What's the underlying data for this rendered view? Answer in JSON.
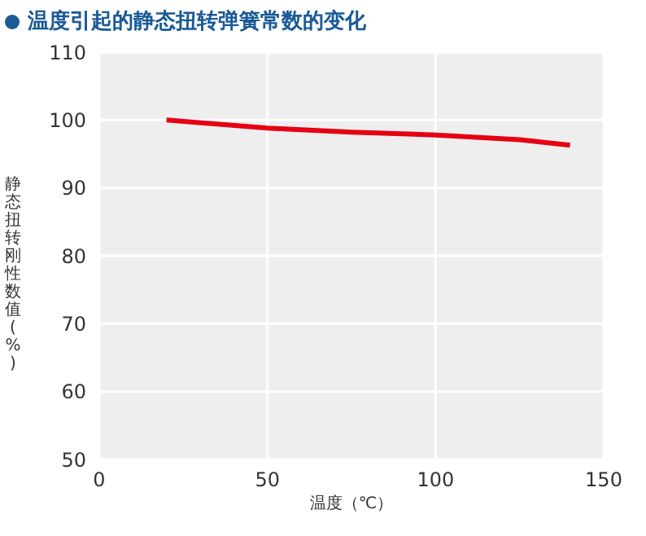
{
  "chart_data": {
    "type": "line",
    "title": "温度引起的静态扭转弹簧常数的变化",
    "xlabel": "温度（℃）",
    "ylabel": "静态扭转刚性数值(%)",
    "x": [
      20,
      50,
      75,
      100,
      125,
      140
    ],
    "series": [
      {
        "color": "#e60012",
        "values": [
          100,
          98.8,
          98.2,
          97.8,
          97.1,
          96.3
        ]
      }
    ],
    "xlim": [
      0,
      150
    ],
    "xticks": [
      0,
      50,
      100,
      150
    ],
    "ylim": [
      50,
      110
    ],
    "yticks": [
      50,
      60,
      70,
      80,
      90,
      100,
      110
    ],
    "grid": true,
    "legend": false,
    "marker": "none",
    "line_style": "solid"
  }
}
